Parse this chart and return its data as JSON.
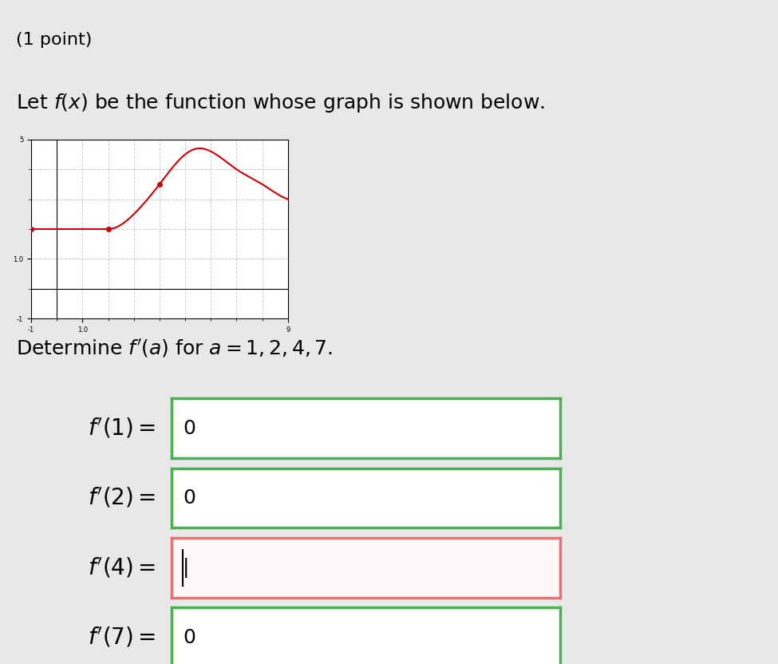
{
  "background_color": "#e8e8e8",
  "title_text": "(1 point)",
  "subtitle_text": "Let $f(x)$ be the function whose graph is shown below.",
  "determine_text": "Determine $f'(a)$ for $a = 1, 2, 4, 7$.",
  "graph": {
    "xlim": [
      -1,
      9
    ],
    "ylim": [
      -1,
      5
    ],
    "xticks": [
      -1,
      1.0,
      9
    ],
    "yticks": [
      -1,
      1.0,
      5
    ],
    "grid_color": "#cccccc",
    "line_color": "#cc0000",
    "dot_color": "#cc0000",
    "curve_points_x": [
      -1,
      1,
      2,
      4,
      5,
      6,
      7,
      8,
      9
    ],
    "curve_points_y": [
      2,
      2,
      2,
      3,
      4.5,
      4.7,
      4.5,
      3.5,
      3
    ]
  },
  "boxes": [
    {
      "label": "$f'(1) =$",
      "value": "0",
      "border_color": "#4CAF50",
      "bg_color": "#ffffff",
      "cursor": false
    },
    {
      "label": "$f'(2) =$",
      "value": "0",
      "border_color": "#4CAF50",
      "bg_color": "#ffffff",
      "cursor": false
    },
    {
      "label": "$f'(4) =$",
      "value": "",
      "border_color": "#e57373",
      "bg_color": "#fff8f8",
      "cursor": true
    },
    {
      "label": "$f'(7) =$",
      "value": "0",
      "border_color": "#4CAF50",
      "bg_color": "#ffffff",
      "cursor": false
    }
  ]
}
